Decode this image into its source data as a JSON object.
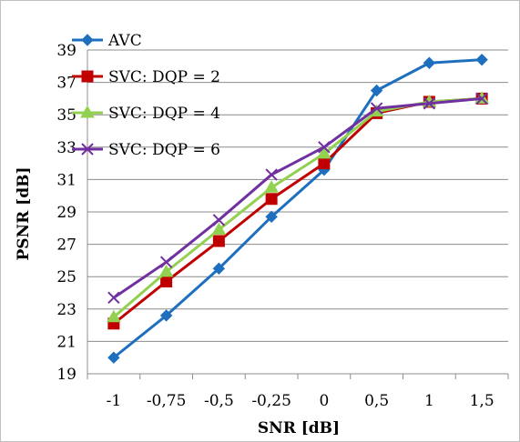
{
  "chart_data": {
    "type": "line",
    "title": "",
    "xlabel": "SNR [dB]",
    "ylabel": "PSNR [dB]",
    "categories": [
      "-1",
      "-0,75",
      "-0,5",
      "-0,25",
      "0",
      "0,5",
      "1",
      "1,5"
    ],
    "ylim": [
      19,
      39
    ],
    "yticks": [
      "19",
      "21",
      "23",
      "25",
      "27",
      "29",
      "31",
      "33",
      "35",
      "37",
      "39"
    ],
    "grid": "horizontal",
    "legend_position": "top-left",
    "series": [
      {
        "name": "AVC",
        "color": "#1F6FBF",
        "marker": "diamond",
        "values": [
          20.0,
          22.6,
          25.5,
          28.7,
          31.6,
          36.5,
          38.2,
          38.4
        ]
      },
      {
        "name": "SVC: DQP = 2",
        "color": "#C00000",
        "marker": "square",
        "values": [
          22.1,
          24.7,
          27.2,
          29.8,
          32.0,
          35.1,
          35.8,
          36.0
        ]
      },
      {
        "name": "SVC: DQP = 4",
        "color": "#92D050",
        "marker": "triangle",
        "values": [
          22.5,
          25.3,
          27.9,
          30.5,
          32.6,
          35.2,
          35.8,
          36.0
        ]
      },
      {
        "name": "SVC: DQP = 6",
        "color": "#7030A0",
        "marker": "x",
        "values": [
          23.7,
          25.9,
          28.5,
          31.3,
          33.0,
          35.4,
          35.7,
          36.0
        ]
      }
    ]
  }
}
